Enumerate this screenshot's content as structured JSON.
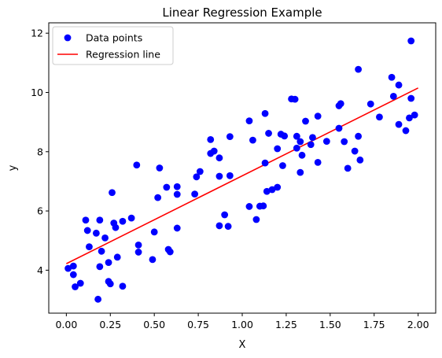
{
  "chart_data": {
    "type": "scatter",
    "title": "Linear Regression Example",
    "xlabel": "X",
    "ylabel": "y",
    "xlim": [
      -0.1,
      2.1
    ],
    "ylim": [
      2.55,
      12.35
    ],
    "x_ticks": [
      0.0,
      0.25,
      0.5,
      0.75,
      1.0,
      1.25,
      1.5,
      1.75,
      2.0
    ],
    "x_tick_labels": [
      "0.00",
      "0.25",
      "0.50",
      "0.75",
      "1.00",
      "1.25",
      "1.50",
      "1.75",
      "2.00"
    ],
    "y_ticks": [
      4,
      6,
      8,
      10,
      12
    ],
    "y_tick_labels": [
      "4",
      "6",
      "8",
      "10",
      "12"
    ],
    "grid": false,
    "legend_position": "top-left",
    "series": [
      {
        "name": "Data points",
        "kind": "scatter",
        "color": "#0000ff",
        "points": [
          [
            0.01,
            4.06
          ],
          [
            0.04,
            4.14
          ],
          [
            0.04,
            3.85
          ],
          [
            0.05,
            3.44
          ],
          [
            0.08,
            3.56
          ],
          [
            0.11,
            5.69
          ],
          [
            0.12,
            5.34
          ],
          [
            0.13,
            4.79
          ],
          [
            0.17,
            5.25
          ],
          [
            0.18,
            3.02
          ],
          [
            0.19,
            5.69
          ],
          [
            0.19,
            4.12
          ],
          [
            0.2,
            4.64
          ],
          [
            0.22,
            5.09
          ],
          [
            0.24,
            4.26
          ],
          [
            0.24,
            3.62
          ],
          [
            0.25,
            3.54
          ],
          [
            0.26,
            6.62
          ],
          [
            0.27,
            5.59
          ],
          [
            0.28,
            5.44
          ],
          [
            0.29,
            4.44
          ],
          [
            0.32,
            3.46
          ],
          [
            0.32,
            5.65
          ],
          [
            0.37,
            5.76
          ],
          [
            0.4,
            7.55
          ],
          [
            0.41,
            4.85
          ],
          [
            0.41,
            4.61
          ],
          [
            0.49,
            4.36
          ],
          [
            0.5,
            5.29
          ],
          [
            0.52,
            6.45
          ],
          [
            0.53,
            7.45
          ],
          [
            0.57,
            6.8
          ],
          [
            0.58,
            4.7
          ],
          [
            0.59,
            4.62
          ],
          [
            0.63,
            6.56
          ],
          [
            0.63,
            6.82
          ],
          [
            0.63,
            5.42
          ],
          [
            0.73,
            6.57
          ],
          [
            0.74,
            7.15
          ],
          [
            0.76,
            7.33
          ],
          [
            0.82,
            8.41
          ],
          [
            0.82,
            7.94
          ],
          [
            0.84,
            8.02
          ],
          [
            0.87,
            7.79
          ],
          [
            0.87,
            7.17
          ],
          [
            0.87,
            5.5
          ],
          [
            0.9,
            5.87
          ],
          [
            0.92,
            5.48
          ],
          [
            0.93,
            8.51
          ],
          [
            0.93,
            7.19
          ],
          [
            1.04,
            9.04
          ],
          [
            1.04,
            6.15
          ],
          [
            1.06,
            8.39
          ],
          [
            1.08,
            5.71
          ],
          [
            1.1,
            6.16
          ],
          [
            1.12,
            6.17
          ],
          [
            1.13,
            9.29
          ],
          [
            1.13,
            7.62
          ],
          [
            1.14,
            6.66
          ],
          [
            1.15,
            8.62
          ],
          [
            1.17,
            6.72
          ],
          [
            1.2,
            8.1
          ],
          [
            1.2,
            6.8
          ],
          [
            1.22,
            8.59
          ],
          [
            1.23,
            7.53
          ],
          [
            1.24,
            8.53
          ],
          [
            1.28,
            9.78
          ],
          [
            1.3,
            9.77
          ],
          [
            1.31,
            8.12
          ],
          [
            1.31,
            8.52
          ],
          [
            1.33,
            7.3
          ],
          [
            1.33,
            8.34
          ],
          [
            1.34,
            7.88
          ],
          [
            1.36,
            9.03
          ],
          [
            1.39,
            8.24
          ],
          [
            1.4,
            8.48
          ],
          [
            1.43,
            9.2
          ],
          [
            1.43,
            7.64
          ],
          [
            1.48,
            8.35
          ],
          [
            1.55,
            9.55
          ],
          [
            1.55,
            8.79
          ],
          [
            1.56,
            9.62
          ],
          [
            1.58,
            8.34
          ],
          [
            1.6,
            7.44
          ],
          [
            1.64,
            8.02
          ],
          [
            1.66,
            8.52
          ],
          [
            1.66,
            10.78
          ],
          [
            1.67,
            7.72
          ],
          [
            1.73,
            9.61
          ],
          [
            1.78,
            9.17
          ],
          [
            1.85,
            10.51
          ],
          [
            1.86,
            9.87
          ],
          [
            1.89,
            10.25
          ],
          [
            1.89,
            8.92
          ],
          [
            1.93,
            8.71
          ],
          [
            1.95,
            9.14
          ],
          [
            1.96,
            9.8
          ],
          [
            1.96,
            11.74
          ],
          [
            1.98,
            9.24
          ]
        ]
      },
      {
        "name": "Regression line",
        "kind": "line",
        "color": "#ff0000",
        "x": [
          0.0,
          2.0
        ],
        "y": [
          4.22,
          10.15
        ]
      }
    ]
  }
}
